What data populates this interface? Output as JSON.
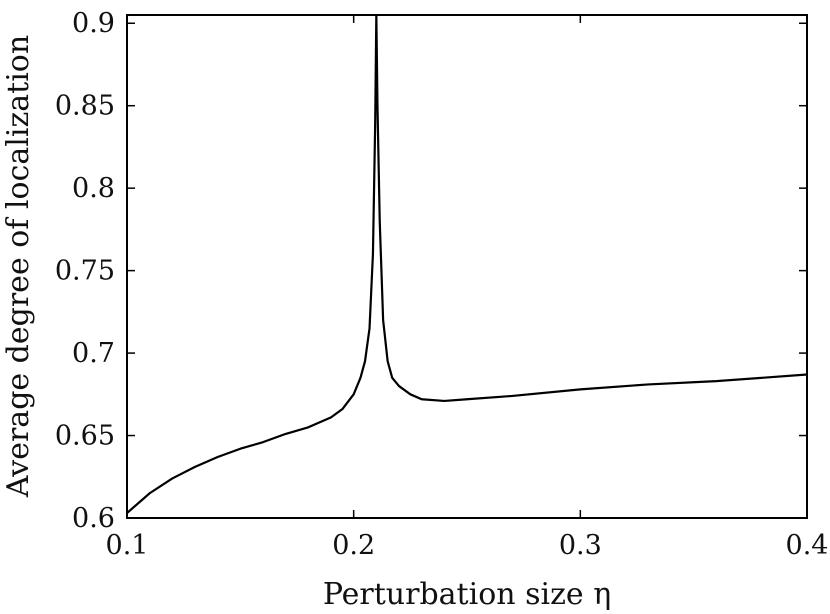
{
  "chart_data": {
    "type": "line",
    "title": "",
    "xlabel": "Perturbation size η",
    "ylabel": "Average degree of localization",
    "xlim": [
      0.1,
      0.4
    ],
    "ylim": [
      0.6,
      0.905
    ],
    "grid": false,
    "legend": "none",
    "x_ticks": [
      0.1,
      0.2,
      0.3,
      0.4
    ],
    "x_tick_labels": [
      "0.1",
      "0.2",
      "0.3",
      "0.4"
    ],
    "y_ticks": [
      0.6,
      0.65,
      0.7,
      0.75,
      0.8,
      0.85,
      0.9
    ],
    "y_tick_labels": [
      "0.6",
      "0.65",
      "0.7",
      "0.75",
      "0.8",
      "0.85",
      "0.9"
    ],
    "line_color": "#000000",
    "series": [
      {
        "x": [
          0.1,
          0.11,
          0.12,
          0.13,
          0.14,
          0.15,
          0.16,
          0.17,
          0.18,
          0.19,
          0.195,
          0.2,
          0.203,
          0.205,
          0.207,
          0.2085,
          0.2095,
          0.21,
          0.2105,
          0.2115,
          0.213,
          0.215,
          0.217,
          0.22,
          0.225,
          0.23,
          0.24,
          0.25,
          0.27,
          0.3,
          0.33,
          0.36,
          0.4
        ],
        "y": [
          0.603,
          0.615,
          0.624,
          0.631,
          0.637,
          0.642,
          0.646,
          0.651,
          0.655,
          0.661,
          0.666,
          0.675,
          0.685,
          0.695,
          0.715,
          0.76,
          0.84,
          0.905,
          0.85,
          0.78,
          0.72,
          0.695,
          0.685,
          0.68,
          0.675,
          0.672,
          0.671,
          0.672,
          0.674,
          0.678,
          0.681,
          0.683,
          0.687
        ]
      }
    ]
  }
}
